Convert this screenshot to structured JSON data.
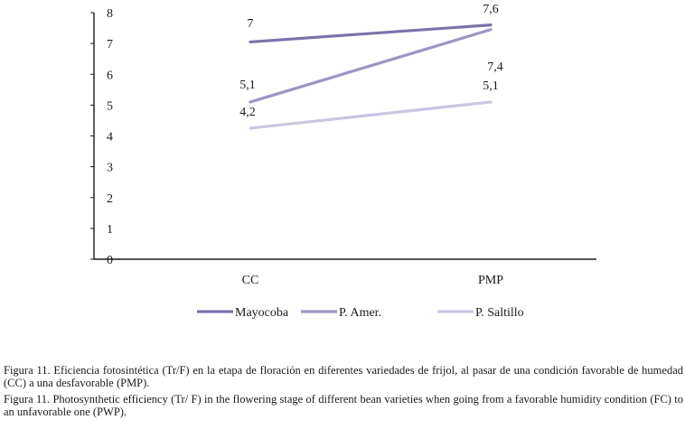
{
  "chart_data": {
    "type": "line",
    "categories": [
      "CC",
      "PMP"
    ],
    "ylim": [
      0,
      8
    ],
    "yticks": [
      0,
      1,
      2,
      3,
      4,
      5,
      6,
      7,
      8
    ],
    "grid": false,
    "legend_position": "bottom",
    "series": [
      {
        "name": "Mayocoba",
        "values": [
          7.05,
          7.6
        ],
        "labels": [
          "7",
          "7,6"
        ],
        "color": "#7a72ab"
      },
      {
        "name": "P. Amer.",
        "values": [
          5.1,
          7.45
        ],
        "labels": [
          "5,1",
          "7,4"
        ],
        "color": "#9a96c4"
      },
      {
        "name": "P. Saltillo",
        "values": [
          4.25,
          5.1
        ],
        "labels": [
          "4,2",
          "5,1"
        ],
        "color": "#c9c6e1"
      }
    ]
  },
  "caption": {
    "spanish": "Figura 11. Eficiencia fotosintética (Tr/F) en la etapa de floración en diferentes variedades de frijol, al pasar de una condición favorable de humedad (CC) a una desfavorable (PMP).",
    "english": "Figura 11. Photosynthetic efficiency (Tr/ F) in the flowering stage of different bean varieties when going from a favorable humidity condition (FC) to an unfavorable one (PWP)."
  }
}
